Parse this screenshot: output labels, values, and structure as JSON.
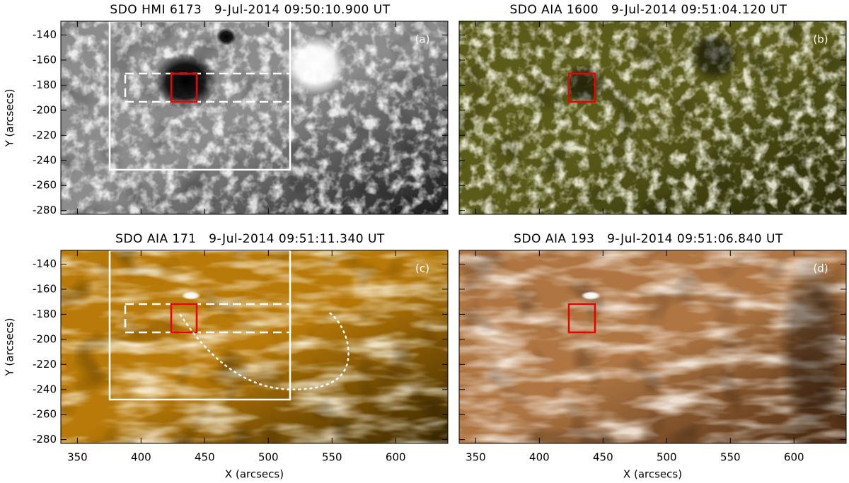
{
  "chart_data": [
    {
      "type": "image",
      "title": "SDO HMI 6173   9-Jul-2014 09:50:10.900 UT",
      "panel_label": "(a)",
      "ylabel": "Y (arcsecs)",
      "colors": [
        "#1a1a1a",
        "#8c8c8c",
        "#ffffff"
      ],
      "xlim": [
        337,
        641
      ],
      "ylim": [
        -283,
        -129
      ],
      "xticks": [
        350,
        400,
        450,
        500,
        550,
        600
      ],
      "yticks": [
        -140,
        -160,
        -180,
        -200,
        -220,
        -240,
        -260,
        -280
      ]
    },
    {
      "type": "image",
      "title": "SDO AIA 1600   9-Jul-2014 09:51:04.120 UT",
      "panel_label": "(b)",
      "colors": [
        "#2a2a08",
        "#5c5c1c",
        "#f4f4c8"
      ],
      "xlim": [
        337,
        641
      ],
      "ylim": [
        -283,
        -129
      ],
      "xticks": [
        350,
        400,
        450,
        500,
        550,
        600
      ],
      "yticks": [
        -140,
        -160,
        -180,
        -200,
        -220,
        -240,
        -260,
        -280
      ]
    },
    {
      "type": "image",
      "title": "SDO AIA 171   9-Jul-2014 09:51:11.340 UT",
      "panel_label": "(c)",
      "xlabel": "X (arcsecs)",
      "ylabel": "Y (arcsecs)",
      "colors": [
        "#3a2800",
        "#b87c08",
        "#fff0c0"
      ],
      "xlim": [
        337,
        641
      ],
      "ylim": [
        -283,
        -129
      ],
      "xticks": [
        350,
        400,
        450,
        500,
        550,
        600
      ],
      "yticks": [
        -140,
        -160,
        -180,
        -200,
        -220,
        -240,
        -260,
        -280
      ]
    },
    {
      "type": "image",
      "title": "SDO AIA 193   9-Jul-2014 09:51:06.840 UT",
      "panel_label": "(d)",
      "xlabel": "X (arcsecs)",
      "colors": [
        "#4a2a10",
        "#b07a48",
        "#fbe8d0"
      ],
      "xlim": [
        337,
        641
      ],
      "ylim": [
        -283,
        -129
      ],
      "xticks": [
        350,
        400,
        450,
        500,
        550,
        600
      ],
      "yticks": [
        -140,
        -160,
        -180,
        -200,
        -220,
        -240,
        -260,
        -280
      ]
    }
  ]
}
